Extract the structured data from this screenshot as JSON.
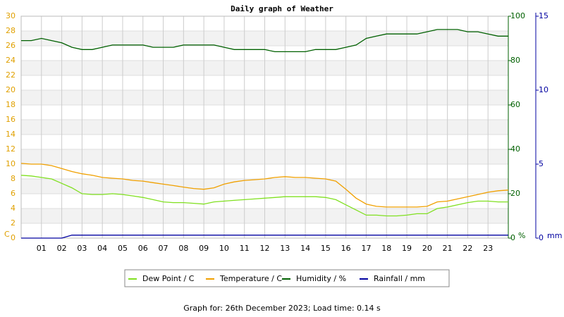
{
  "chart_data": {
    "type": "line",
    "title": "Daily graph of Weather",
    "footer": "Graph for: 26th December 2023; Load time: 0.14 s",
    "y_label": "C",
    "y2_label": "%",
    "y3_label": "mm",
    "x": [
      0,
      0.5,
      1,
      1.5,
      2,
      2.5,
      3,
      3.5,
      4,
      4.5,
      5,
      5.5,
      6,
      6.5,
      7,
      7.5,
      8,
      8.5,
      9,
      9.5,
      10,
      10.5,
      11,
      11.5,
      12,
      12.5,
      13,
      13.5,
      14,
      14.5,
      15,
      15.5,
      16,
      16.5,
      17,
      17.5,
      18,
      18.5,
      19,
      19.5,
      20,
      20.5,
      21,
      21.5,
      22,
      22.5,
      23,
      23.5,
      24
    ],
    "xlim": [
      0,
      24
    ],
    "xticks": [
      {
        "value": 1,
        "label": "01"
      },
      {
        "value": 2,
        "label": "02"
      },
      {
        "value": 3,
        "label": "03"
      },
      {
        "value": 4,
        "label": "04"
      },
      {
        "value": 5,
        "label": "05"
      },
      {
        "value": 6,
        "label": "06"
      },
      {
        "value": 7,
        "label": "07"
      },
      {
        "value": 8,
        "label": "08"
      },
      {
        "value": 9,
        "label": "09"
      },
      10,
      11,
      12,
      13,
      14,
      15,
      16,
      17,
      18,
      19,
      20,
      21,
      22,
      23
    ],
    "ylim": [
      0,
      30
    ],
    "yticks": [
      0,
      2,
      4,
      6,
      8,
      10,
      12,
      14,
      16,
      18,
      20,
      22,
      24,
      26,
      28,
      30
    ],
    "y2lim": [
      0,
      100
    ],
    "y2ticks": [
      0,
      20,
      40,
      60,
      80,
      100
    ],
    "y3lim": [
      0,
      15
    ],
    "y3ticks": [
      0,
      5,
      10,
      15
    ],
    "grid": true,
    "series": [
      {
        "name": "Dew Point / C",
        "color": "#80e020",
        "axis": "y",
        "values": [
          8.5,
          8.4,
          8.2,
          8.0,
          7.4,
          6.8,
          6.0,
          5.9,
          5.9,
          6.0,
          5.9,
          5.7,
          5.5,
          5.2,
          4.9,
          4.8,
          4.8,
          4.7,
          4.6,
          4.9,
          5.0,
          5.1,
          5.2,
          5.3,
          5.4,
          5.5,
          5.6,
          5.6,
          5.6,
          5.6,
          5.5,
          5.2,
          4.5,
          3.8,
          3.1,
          3.1,
          3.0,
          3.0,
          3.1,
          3.3,
          3.3,
          4.0,
          4.2,
          4.5,
          4.8,
          5.0,
          5.0,
          4.9,
          4.9
        ]
      },
      {
        "name": "Temperature / C",
        "color": "#f0a000",
        "axis": "y",
        "values": [
          10.1,
          10.0,
          10.0,
          9.8,
          9.4,
          9.0,
          8.7,
          8.5,
          8.2,
          8.1,
          8.0,
          7.8,
          7.7,
          7.5,
          7.3,
          7.1,
          6.9,
          6.7,
          6.6,
          6.8,
          7.3,
          7.6,
          7.8,
          7.9,
          8.0,
          8.2,
          8.3,
          8.2,
          8.2,
          8.1,
          8.0,
          7.7,
          6.6,
          5.4,
          4.6,
          4.3,
          4.2,
          4.2,
          4.2,
          4.2,
          4.3,
          4.9,
          5.0,
          5.3,
          5.6,
          5.9,
          6.2,
          6.4,
          6.5
        ]
      },
      {
        "name": "Humidity / %",
        "color": "#006000",
        "axis": "y2",
        "values": [
          89,
          89,
          90,
          89,
          88,
          86,
          85,
          85,
          86,
          87,
          87,
          87,
          87,
          86,
          86,
          86,
          87,
          87,
          87,
          87,
          86,
          85,
          85,
          85,
          85,
          84,
          84,
          84,
          84,
          85,
          85,
          85,
          86,
          87,
          90,
          91,
          92,
          92,
          92,
          92,
          93,
          94,
          94,
          94,
          93,
          93,
          92,
          91,
          91
        ]
      },
      {
        "name": "Rainfall / mm",
        "color": "#0000a0",
        "axis": "y3",
        "values": [
          0,
          0,
          0,
          0,
          0,
          0.2,
          0.2,
          0.2,
          0.2,
          0.2,
          0.2,
          0.2,
          0.2,
          0.2,
          0.2,
          0.2,
          0.2,
          0.2,
          0.2,
          0.2,
          0.2,
          0.2,
          0.2,
          0.2,
          0.2,
          0.2,
          0.2,
          0.2,
          0.2,
          0.2,
          0.2,
          0.2,
          0.2,
          0.2,
          0.2,
          0.2,
          0.2,
          0.2,
          0.2,
          0.2,
          0.2,
          0.2,
          0.2,
          0.2,
          0.2,
          0.2,
          0.2,
          0.2,
          0.2
        ]
      }
    ]
  }
}
